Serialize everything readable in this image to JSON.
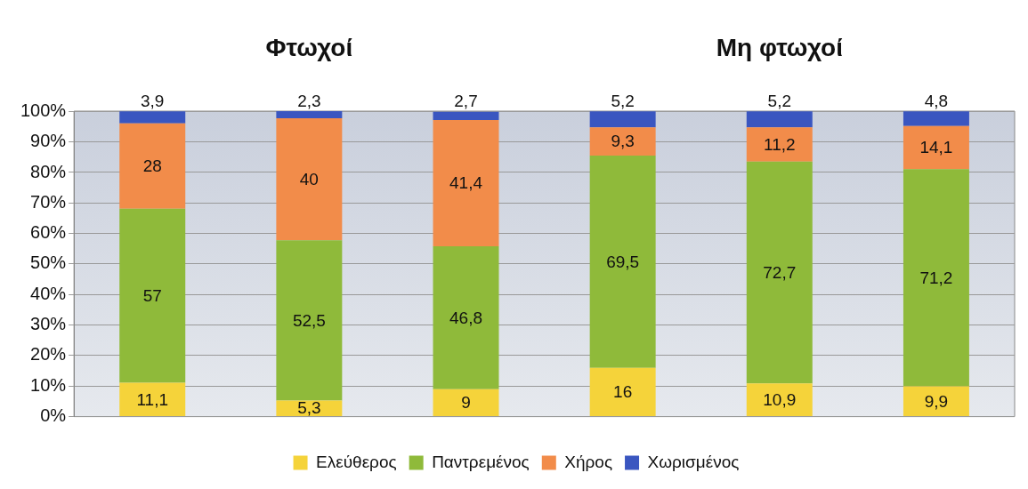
{
  "chart_data": {
    "type": "bar",
    "stacked": true,
    "annotations": [
      "Φτωχοί",
      "Μη φτωχοί"
    ],
    "categories": [
      null,
      null,
      null,
      null,
      null,
      null
    ],
    "series": [
      {
        "name": "Ελεύθερος",
        "color": "#f5d33a",
        "values": [
          11.1,
          5.3,
          9,
          16,
          10.9,
          9.9
        ],
        "value_labels": [
          "11,1",
          "5,3",
          "9",
          "16",
          "10,9",
          "9,9"
        ]
      },
      {
        "name": "Παντρεμένος",
        "color": "#8fba3a",
        "values": [
          57,
          52.5,
          46.8,
          69.5,
          72.7,
          71.2
        ],
        "value_labels": [
          "57",
          "52,5",
          "46,8",
          "69,5",
          "72,7",
          "71,2"
        ]
      },
      {
        "name": "Χήρος",
        "color": "#f28c4a",
        "values": [
          28,
          40,
          41.4,
          9.3,
          11.2,
          14.1
        ],
        "value_labels": [
          "28",
          "40",
          "41,4",
          "9,3",
          "11,2",
          "14,1"
        ]
      },
      {
        "name": "Χωρισμένος",
        "color": "#3a56c0",
        "values": [
          3.9,
          2.3,
          2.7,
          5.2,
          5.2,
          4.8
        ],
        "value_labels": [
          "3,9",
          "2,3",
          "2,7",
          "5,2",
          "5,2",
          "4,8"
        ]
      }
    ],
    "ylim": [
      0,
      100.1
    ],
    "yticks": [
      {
        "value": 0,
        "label": "0%"
      },
      {
        "value": 10,
        "label": "10%"
      },
      {
        "value": 20,
        "label": "20%"
      },
      {
        "value": 30,
        "label": "30%"
      },
      {
        "value": 40,
        "label": "40%"
      },
      {
        "value": 50,
        "label": "50%"
      },
      {
        "value": 60,
        "label": "60%"
      },
      {
        "value": 70,
        "label": "70%"
      },
      {
        "value": 80,
        "label": "80%"
      },
      {
        "value": 90,
        "label": "90%"
      },
      {
        "value": 100,
        "label": "100%"
      }
    ],
    "grid": "y",
    "legend": "bottom"
  }
}
